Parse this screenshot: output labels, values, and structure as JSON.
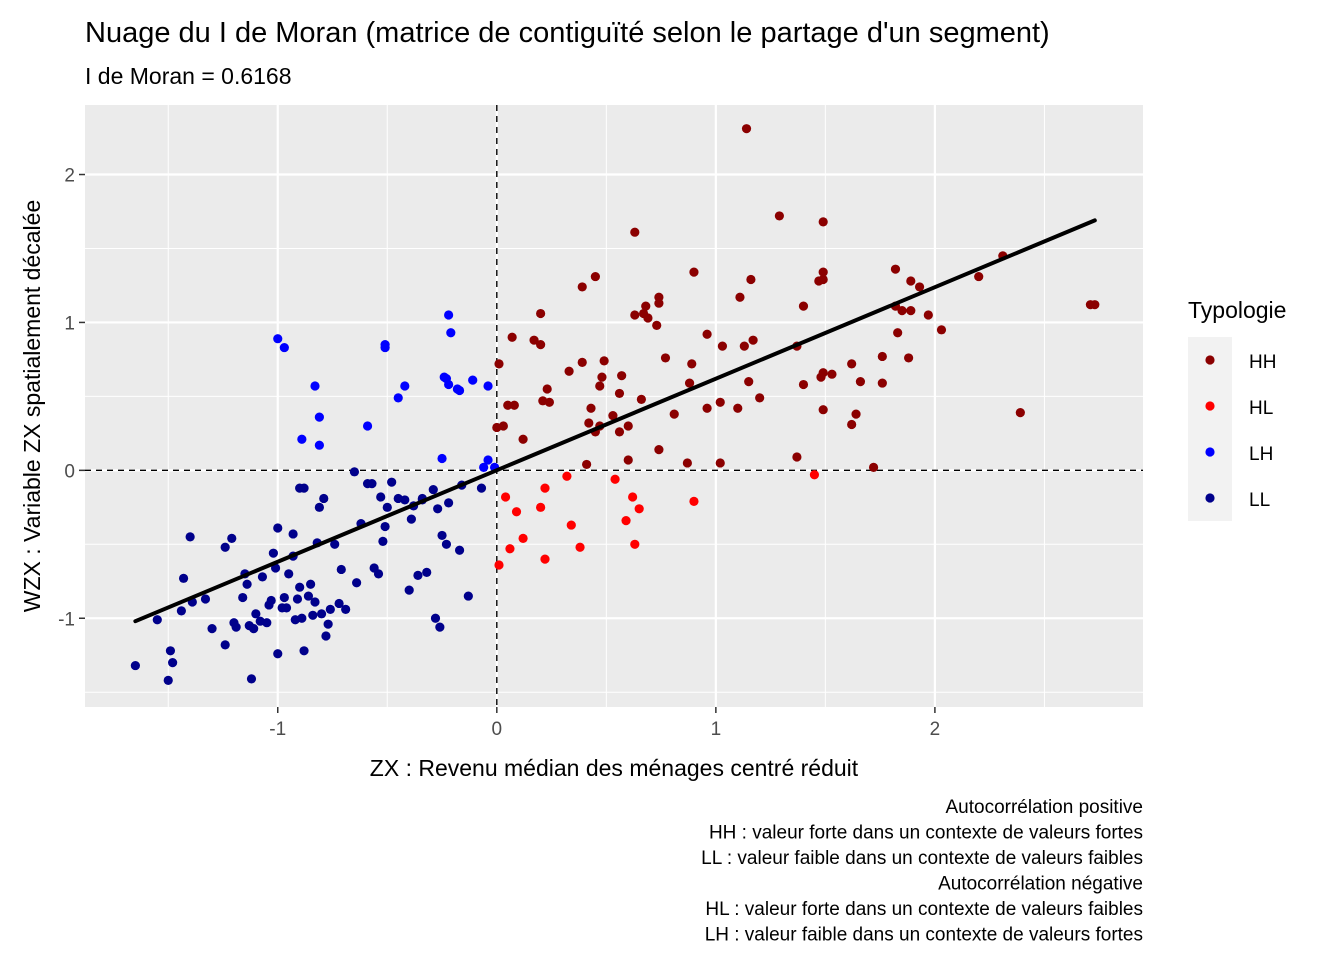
{
  "chart_data": {
    "type": "scatter",
    "title": "Nuage du I de Moran (matrice de contiguïté selon le partage d'un segment)",
    "subtitle": "I de Moran =  0.6168",
    "xlabel": "ZX : Revenu médian des ménages centré réduit",
    "ylabel": "WZX : Variable ZX spatialement décalée",
    "xlim": [
      -1.88,
      2.95
    ],
    "ylim": [
      -1.6,
      2.47
    ],
    "x_ticks": [
      -1,
      0,
      1,
      2
    ],
    "y_ticks": [
      -1,
      0,
      1,
      2
    ],
    "grid": true,
    "reference_lines": {
      "x": 0,
      "y": 0,
      "style": "dashed"
    },
    "regression_line": {
      "x": [
        -1.65,
        2.73
      ],
      "y": [
        -1.02,
        1.69
      ]
    },
    "legend": {
      "title": "Typologie",
      "position": "right",
      "entries": [
        {
          "name": "HH",
          "color": "#8B0000"
        },
        {
          "name": "HL",
          "color": "#FF0000"
        },
        {
          "name": "LH",
          "color": "#0000FF"
        },
        {
          "name": "LL",
          "color": "#00008B"
        }
      ]
    },
    "caption": [
      "Autocorrélation positive",
      "HH : valeur forte dans un contexte de valeurs fortes",
      "LL : valeur faible dans un contexte de valeurs faibles",
      "Autocorrélation négative",
      "HL : valeur forte dans un contexte de valeurs faibles",
      "LH : valeur faible dans un contexte de valeurs fortes"
    ],
    "series": [
      {
        "name": "HH",
        "color": "#8B0000",
        "points": [
          [
            1.14,
            2.31
          ],
          [
            1.29,
            1.72
          ],
          [
            1.49,
            1.68
          ],
          [
            0.63,
            1.61
          ],
          [
            2.31,
            1.45
          ],
          [
            0.9,
            1.34
          ],
          [
            1.49,
            1.34
          ],
          [
            1.82,
            1.36
          ],
          [
            1.47,
            1.28
          ],
          [
            1.49,
            1.29
          ],
          [
            1.89,
            1.28
          ],
          [
            1.93,
            1.24
          ],
          [
            2.2,
            1.31
          ],
          [
            0.45,
            1.31
          ],
          [
            0.39,
            1.24
          ],
          [
            1.16,
            1.29
          ],
          [
            0.74,
            1.17
          ],
          [
            0.74,
            1.13
          ],
          [
            0.68,
            1.11
          ],
          [
            1.11,
            1.17
          ],
          [
            1.4,
            1.11
          ],
          [
            1.82,
            1.11
          ],
          [
            1.85,
            1.08
          ],
          [
            1.89,
            1.08
          ],
          [
            2.73,
            1.12
          ],
          [
            2.71,
            1.12
          ],
          [
            0.2,
            1.06
          ],
          [
            0.67,
            1.06
          ],
          [
            0.69,
            1.03
          ],
          [
            0.63,
            1.05
          ],
          [
            1.97,
            1.05
          ],
          [
            0.73,
            0.98
          ],
          [
            1.83,
            0.93
          ],
          [
            2.03,
            0.95
          ],
          [
            0.07,
            0.9
          ],
          [
            0.17,
            0.88
          ],
          [
            0.2,
            0.85
          ],
          [
            0.96,
            0.92
          ],
          [
            1.13,
            0.84
          ],
          [
            1.17,
            0.88
          ],
          [
            1.37,
            0.84
          ],
          [
            1.03,
            0.84
          ],
          [
            0.77,
            0.76
          ],
          [
            0.49,
            0.74
          ],
          [
            0.39,
            0.73
          ],
          [
            1.88,
            0.76
          ],
          [
            1.62,
            0.72
          ],
          [
            1.76,
            0.77
          ],
          [
            0.57,
            0.64
          ],
          [
            0.48,
            0.63
          ],
          [
            0.33,
            0.67
          ],
          [
            0.01,
            0.72
          ],
          [
            0.89,
            0.72
          ],
          [
            1.15,
            0.6
          ],
          [
            1.4,
            0.58
          ],
          [
            1.49,
            0.66
          ],
          [
            1.53,
            0.65
          ],
          [
            1.48,
            0.63
          ],
          [
            1.76,
            0.59
          ],
          [
            1.66,
            0.6
          ],
          [
            0.47,
            0.57
          ],
          [
            0.23,
            0.55
          ],
          [
            0.88,
            0.59
          ],
          [
            0.56,
            0.52
          ],
          [
            0.66,
            0.48
          ],
          [
            1.2,
            0.49
          ],
          [
            0.24,
            0.46
          ],
          [
            0.21,
            0.47
          ],
          [
            0.43,
            0.42
          ],
          [
            0.05,
            0.44
          ],
          [
            0.08,
            0.44
          ],
          [
            0.96,
            0.42
          ],
          [
            1.02,
            0.46
          ],
          [
            1.1,
            0.42
          ],
          [
            1.49,
            0.41
          ],
          [
            0.81,
            0.38
          ],
          [
            0.53,
            0.37
          ],
          [
            0.42,
            0.32
          ],
          [
            0.47,
            0.3
          ],
          [
            0.6,
            0.3
          ],
          [
            0.56,
            0.26
          ],
          [
            1.64,
            0.38
          ],
          [
            1.62,
            0.31
          ],
          [
            0.0,
            0.29
          ],
          [
            0.03,
            0.3
          ],
          [
            0.12,
            0.21
          ],
          [
            0.45,
            0.26
          ],
          [
            0.74,
            0.14
          ],
          [
            1.37,
            0.09
          ],
          [
            0.6,
            0.07
          ],
          [
            0.41,
            0.04
          ],
          [
            0.87,
            0.05
          ],
          [
            1.02,
            0.05
          ],
          [
            1.72,
            0.02
          ],
          [
            2.39,
            0.39
          ]
        ]
      },
      {
        "name": "HL",
        "color": "#FF0000",
        "points": [
          [
            0.04,
            -0.18
          ],
          [
            0.09,
            -0.28
          ],
          [
            0.32,
            -0.04
          ],
          [
            0.54,
            -0.06
          ],
          [
            0.62,
            -0.18
          ],
          [
            0.22,
            -0.12
          ],
          [
            0.2,
            -0.25
          ],
          [
            0.65,
            -0.26
          ],
          [
            0.59,
            -0.34
          ],
          [
            0.34,
            -0.37
          ],
          [
            0.12,
            -0.46
          ],
          [
            0.06,
            -0.53
          ],
          [
            0.38,
            -0.52
          ],
          [
            0.63,
            -0.5
          ],
          [
            0.22,
            -0.6
          ],
          [
            0.01,
            -0.64
          ],
          [
            0.9,
            -0.21
          ],
          [
            1.45,
            -0.03
          ]
        ]
      },
      {
        "name": "LH",
        "color": "#0000FF",
        "points": [
          [
            -1.0,
            0.89
          ],
          [
            -0.97,
            0.83
          ],
          [
            -0.51,
            0.85
          ],
          [
            -0.51,
            0.83
          ],
          [
            -0.22,
            1.05
          ],
          [
            -0.21,
            0.93
          ],
          [
            -0.83,
            0.57
          ],
          [
            -0.42,
            0.57
          ],
          [
            -0.45,
            0.49
          ],
          [
            -0.24,
            0.63
          ],
          [
            -0.22,
            0.58
          ],
          [
            -0.18,
            0.55
          ],
          [
            -0.17,
            0.54
          ],
          [
            -0.11,
            0.61
          ],
          [
            -0.04,
            0.57
          ],
          [
            -0.23,
            0.62
          ],
          [
            -0.81,
            0.36
          ],
          [
            -0.59,
            0.3
          ],
          [
            -0.89,
            0.21
          ],
          [
            -0.81,
            0.17
          ],
          [
            -0.25,
            0.08
          ],
          [
            -0.04,
            0.07
          ],
          [
            -0.06,
            0.02
          ],
          [
            -0.01,
            0.02
          ]
        ]
      },
      {
        "name": "LL",
        "color": "#00008B",
        "points": [
          [
            -1.65,
            -1.32
          ],
          [
            -1.5,
            -1.42
          ],
          [
            -1.49,
            -1.22
          ],
          [
            -1.48,
            -1.3
          ],
          [
            -1.55,
            -1.01
          ],
          [
            -1.44,
            -0.95
          ],
          [
            -1.43,
            -0.73
          ],
          [
            -1.4,
            -0.45
          ],
          [
            -1.39,
            -0.89
          ],
          [
            -1.33,
            -0.87
          ],
          [
            -1.3,
            -1.07
          ],
          [
            -1.24,
            -1.18
          ],
          [
            -1.24,
            -0.52
          ],
          [
            -1.21,
            -0.46
          ],
          [
            -1.2,
            -1.03
          ],
          [
            -1.19,
            -1.06
          ],
          [
            -1.16,
            -0.86
          ],
          [
            -1.15,
            -0.7
          ],
          [
            -1.14,
            -0.77
          ],
          [
            -1.13,
            -1.05
          ],
          [
            -1.12,
            -1.41
          ],
          [
            -1.11,
            -1.07
          ],
          [
            -1.1,
            -0.97
          ],
          [
            -1.08,
            -1.02
          ],
          [
            -1.07,
            -0.72
          ],
          [
            -1.05,
            -1.03
          ],
          [
            -1.04,
            -0.91
          ],
          [
            -1.03,
            -0.88
          ],
          [
            -1.02,
            -0.56
          ],
          [
            -1.01,
            -0.66
          ],
          [
            -1.0,
            -0.39
          ],
          [
            -1.0,
            -1.24
          ],
          [
            -0.98,
            -0.93
          ],
          [
            -0.97,
            -0.86
          ],
          [
            -0.96,
            -0.93
          ],
          [
            -0.95,
            -0.7
          ],
          [
            -0.93,
            -0.43
          ],
          [
            -0.93,
            -0.58
          ],
          [
            -0.92,
            -1.01
          ],
          [
            -0.91,
            -0.87
          ],
          [
            -0.9,
            -0.79
          ],
          [
            -0.89,
            -1.0
          ],
          [
            -0.88,
            -1.22
          ],
          [
            -0.86,
            -0.85
          ],
          [
            -0.85,
            -0.77
          ],
          [
            -0.84,
            -0.98
          ],
          [
            -0.83,
            -0.89
          ],
          [
            -0.82,
            -0.49
          ],
          [
            -0.81,
            -0.25
          ],
          [
            -0.8,
            -0.97
          ],
          [
            -0.79,
            -0.19
          ],
          [
            -0.78,
            -1.12
          ],
          [
            -0.77,
            -1.04
          ],
          [
            -0.76,
            -0.94
          ],
          [
            -0.74,
            -0.5
          ],
          [
            -0.72,
            -0.9
          ],
          [
            -0.69,
            -0.94
          ],
          [
            -0.65,
            -0.01
          ],
          [
            -0.64,
            -0.76
          ],
          [
            -0.62,
            -0.36
          ],
          [
            -0.59,
            -0.09
          ],
          [
            -0.56,
            -0.66
          ],
          [
            -0.54,
            -0.7
          ],
          [
            -0.53,
            -0.18
          ],
          [
            -0.52,
            -0.48
          ],
          [
            -0.51,
            -0.38
          ],
          [
            -0.5,
            -0.25
          ],
          [
            -0.48,
            -0.08
          ],
          [
            -0.45,
            -0.19
          ],
          [
            -0.42,
            -0.2
          ],
          [
            -0.4,
            -0.81
          ],
          [
            -0.39,
            -0.33
          ],
          [
            -0.36,
            -0.71
          ],
          [
            -0.34,
            -0.19
          ],
          [
            -0.32,
            -0.69
          ],
          [
            -0.29,
            -0.13
          ],
          [
            -0.28,
            -1.0
          ],
          [
            -0.26,
            -1.06
          ],
          [
            -0.25,
            -0.44
          ],
          [
            -0.23,
            -0.5
          ],
          [
            -0.17,
            -0.54
          ],
          [
            -0.13,
            -0.85
          ],
          [
            -0.9,
            -0.12
          ],
          [
            -0.57,
            -0.09
          ],
          [
            -0.38,
            -0.24
          ],
          [
            -0.34,
            -0.2
          ],
          [
            -0.27,
            -0.26
          ],
          [
            -0.22,
            -0.22
          ],
          [
            -0.07,
            -0.12
          ],
          [
            -0.16,
            -0.1
          ],
          [
            -0.71,
            -0.67
          ],
          [
            -0.88,
            -0.12
          ]
        ]
      }
    ]
  }
}
